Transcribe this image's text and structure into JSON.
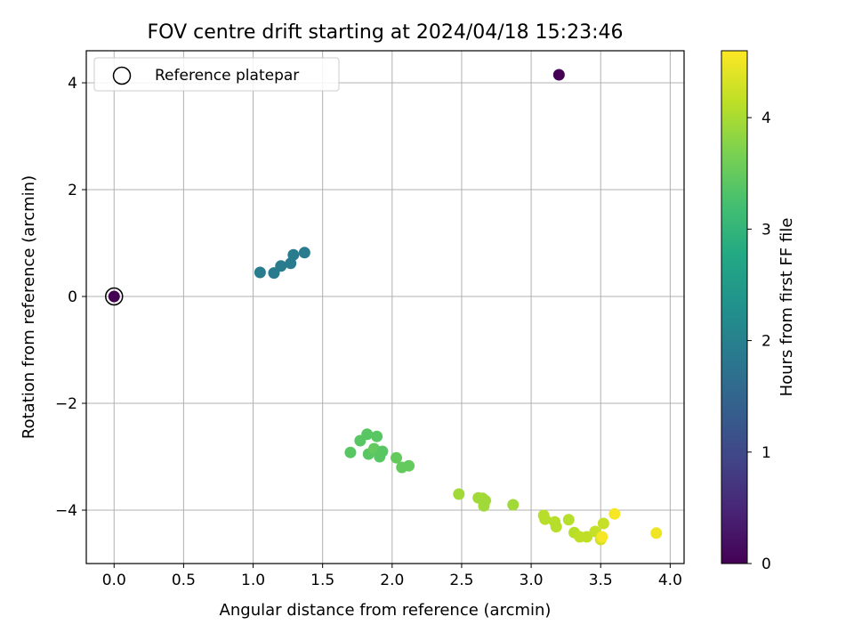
{
  "chart_data": {
    "type": "scatter",
    "title": "FOV centre drift starting at 2024/04/18 15:23:46",
    "xlabel": "Angular distance from reference (arcmin)",
    "ylabel": "Rotation from reference (arcmin)",
    "xlim": [
      -0.2,
      4.1
    ],
    "ylim": [
      -5.0,
      4.6
    ],
    "xticks": [
      0.0,
      0.5,
      1.0,
      1.5,
      2.0,
      2.5,
      3.0,
      3.5,
      4.0
    ],
    "xtick_labels": [
      "0.0",
      "0.5",
      "1.0",
      "1.5",
      "2.0",
      "2.5",
      "3.0",
      "3.5",
      "4.0"
    ],
    "yticks": [
      -4,
      -2,
      0,
      2,
      4
    ],
    "ytick_labels": [
      "−4",
      "−2",
      "0",
      "2",
      "4"
    ],
    "grid": true,
    "legend": {
      "placement": "top-left",
      "entries": [
        "Reference platepar"
      ]
    },
    "colorbar": {
      "label": "Hours from first FF file",
      "range": [
        0,
        4.6
      ],
      "ticks": [
        0,
        1,
        2,
        3,
        4
      ],
      "tick_labels": [
        "0",
        "1",
        "2",
        "3",
        "4"
      ],
      "colormap": "viridis"
    },
    "reference_point": {
      "x": 0.0,
      "y": 0.0
    },
    "points": [
      {
        "x": 0.0,
        "y": 0.0,
        "hours": 0.0
      },
      {
        "x": 3.2,
        "y": 4.15,
        "hours": 0.0
      },
      {
        "x": 1.05,
        "y": 0.45,
        "hours": 1.9
      },
      {
        "x": 1.15,
        "y": 0.44,
        "hours": 1.9
      },
      {
        "x": 1.2,
        "y": 0.57,
        "hours": 1.9
      },
      {
        "x": 1.27,
        "y": 0.62,
        "hours": 1.9
      },
      {
        "x": 1.29,
        "y": 0.78,
        "hours": 1.9
      },
      {
        "x": 1.37,
        "y": 0.82,
        "hours": 1.9
      },
      {
        "x": 1.7,
        "y": -2.92,
        "hours": 3.4
      },
      {
        "x": 1.77,
        "y": -2.7,
        "hours": 3.4
      },
      {
        "x": 1.82,
        "y": -2.58,
        "hours": 3.4
      },
      {
        "x": 1.83,
        "y": -2.95,
        "hours": 3.4
      },
      {
        "x": 1.87,
        "y": -2.85,
        "hours": 3.5
      },
      {
        "x": 1.89,
        "y": -2.62,
        "hours": 3.4
      },
      {
        "x": 1.91,
        "y": -3.0,
        "hours": 3.4
      },
      {
        "x": 1.93,
        "y": -2.9,
        "hours": 3.4
      },
      {
        "x": 2.03,
        "y": -3.02,
        "hours": 3.5
      },
      {
        "x": 2.07,
        "y": -3.2,
        "hours": 3.5
      },
      {
        "x": 2.12,
        "y": -3.17,
        "hours": 3.5
      },
      {
        "x": 2.48,
        "y": -3.7,
        "hours": 3.95
      },
      {
        "x": 2.62,
        "y": -3.77,
        "hours": 3.95
      },
      {
        "x": 2.65,
        "y": -3.78,
        "hours": 3.95
      },
      {
        "x": 2.66,
        "y": -3.92,
        "hours": 3.95
      },
      {
        "x": 2.67,
        "y": -3.82,
        "hours": 3.95
      },
      {
        "x": 2.87,
        "y": -3.9,
        "hours": 3.95
      },
      {
        "x": 3.09,
        "y": -4.1,
        "hours": 4.1
      },
      {
        "x": 3.1,
        "y": -4.17,
        "hours": 4.1
      },
      {
        "x": 3.17,
        "y": -4.22,
        "hours": 4.1
      },
      {
        "x": 3.18,
        "y": -4.31,
        "hours": 4.1
      },
      {
        "x": 3.27,
        "y": -4.18,
        "hours": 4.1
      },
      {
        "x": 3.31,
        "y": -4.42,
        "hours": 4.1
      },
      {
        "x": 3.35,
        "y": -4.5,
        "hours": 4.15
      },
      {
        "x": 3.4,
        "y": -4.5,
        "hours": 4.15
      },
      {
        "x": 3.46,
        "y": -4.4,
        "hours": 4.2
      },
      {
        "x": 3.5,
        "y": -4.55,
        "hours": 4.3
      },
      {
        "x": 3.51,
        "y": -4.5,
        "hours": 4.55
      },
      {
        "x": 3.52,
        "y": -4.25,
        "hours": 4.2
      },
      {
        "x": 3.6,
        "y": -4.07,
        "hours": 4.55
      },
      {
        "x": 3.9,
        "y": -4.43,
        "hours": 4.5
      }
    ]
  }
}
